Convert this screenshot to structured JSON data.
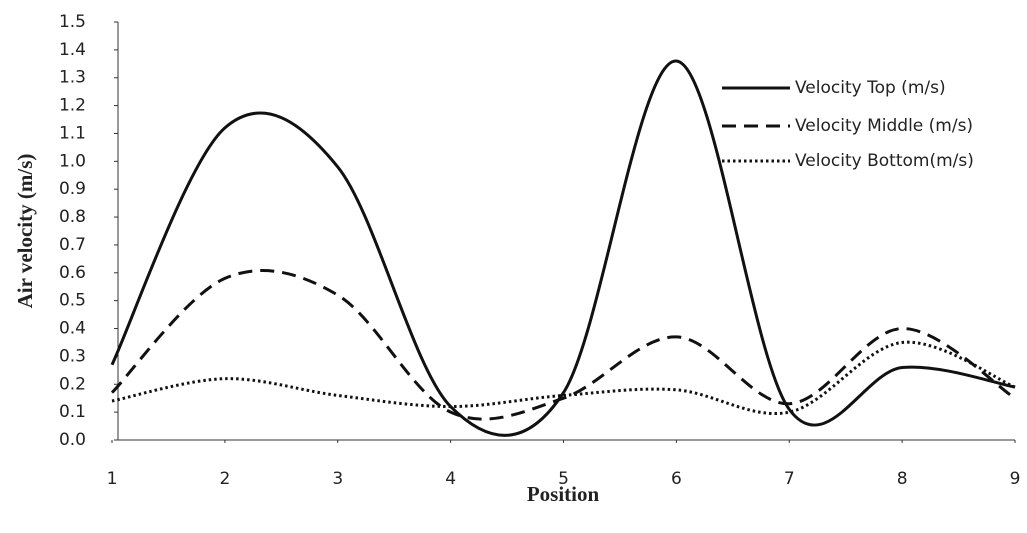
{
  "chart_data": {
    "type": "line",
    "xlabel": "Position",
    "ylabel": "Air velocity (m/s)",
    "x": [
      1,
      2,
      3,
      4,
      5,
      6,
      7,
      8,
      9
    ],
    "xlim": [
      1,
      9
    ],
    "xticks": [
      1,
      2,
      3,
      4,
      5,
      6,
      7,
      8,
      9
    ],
    "ylim": [
      0,
      1.5
    ],
    "yticks": [
      {
        "value": 0,
        "label": "0.0"
      },
      0.1,
      0.2,
      0.3,
      0.4,
      0.5,
      0.6,
      0.7,
      0.8,
      0.9,
      {
        "value": 1,
        "label": "1.0"
      },
      1.1,
      1.2,
      1.3,
      1.4,
      1.5
    ],
    "smooth": true,
    "legend": "upper right",
    "series": [
      {
        "name": "Velocity Top (m/s)",
        "color": "#111111",
        "dash": "solid",
        "values": [
          0.27,
          1.12,
          0.98,
          0.12,
          0.17,
          1.36,
          0.11,
          0.26,
          0.19
        ]
      },
      {
        "name": "Velocity Middle (m/s)",
        "color": "#111111",
        "dash": "dashed",
        "values": [
          0.17,
          0.58,
          0.52,
          0.1,
          0.15,
          0.37,
          0.13,
          0.4,
          0.15
        ]
      },
      {
        "name": "Velocity Bottom(m/s)",
        "color": "#111111",
        "dash": "dotted",
        "values": [
          0.14,
          0.22,
          0.16,
          0.12,
          0.16,
          0.18,
          0.1,
          0.35,
          0.19
        ]
      }
    ]
  }
}
